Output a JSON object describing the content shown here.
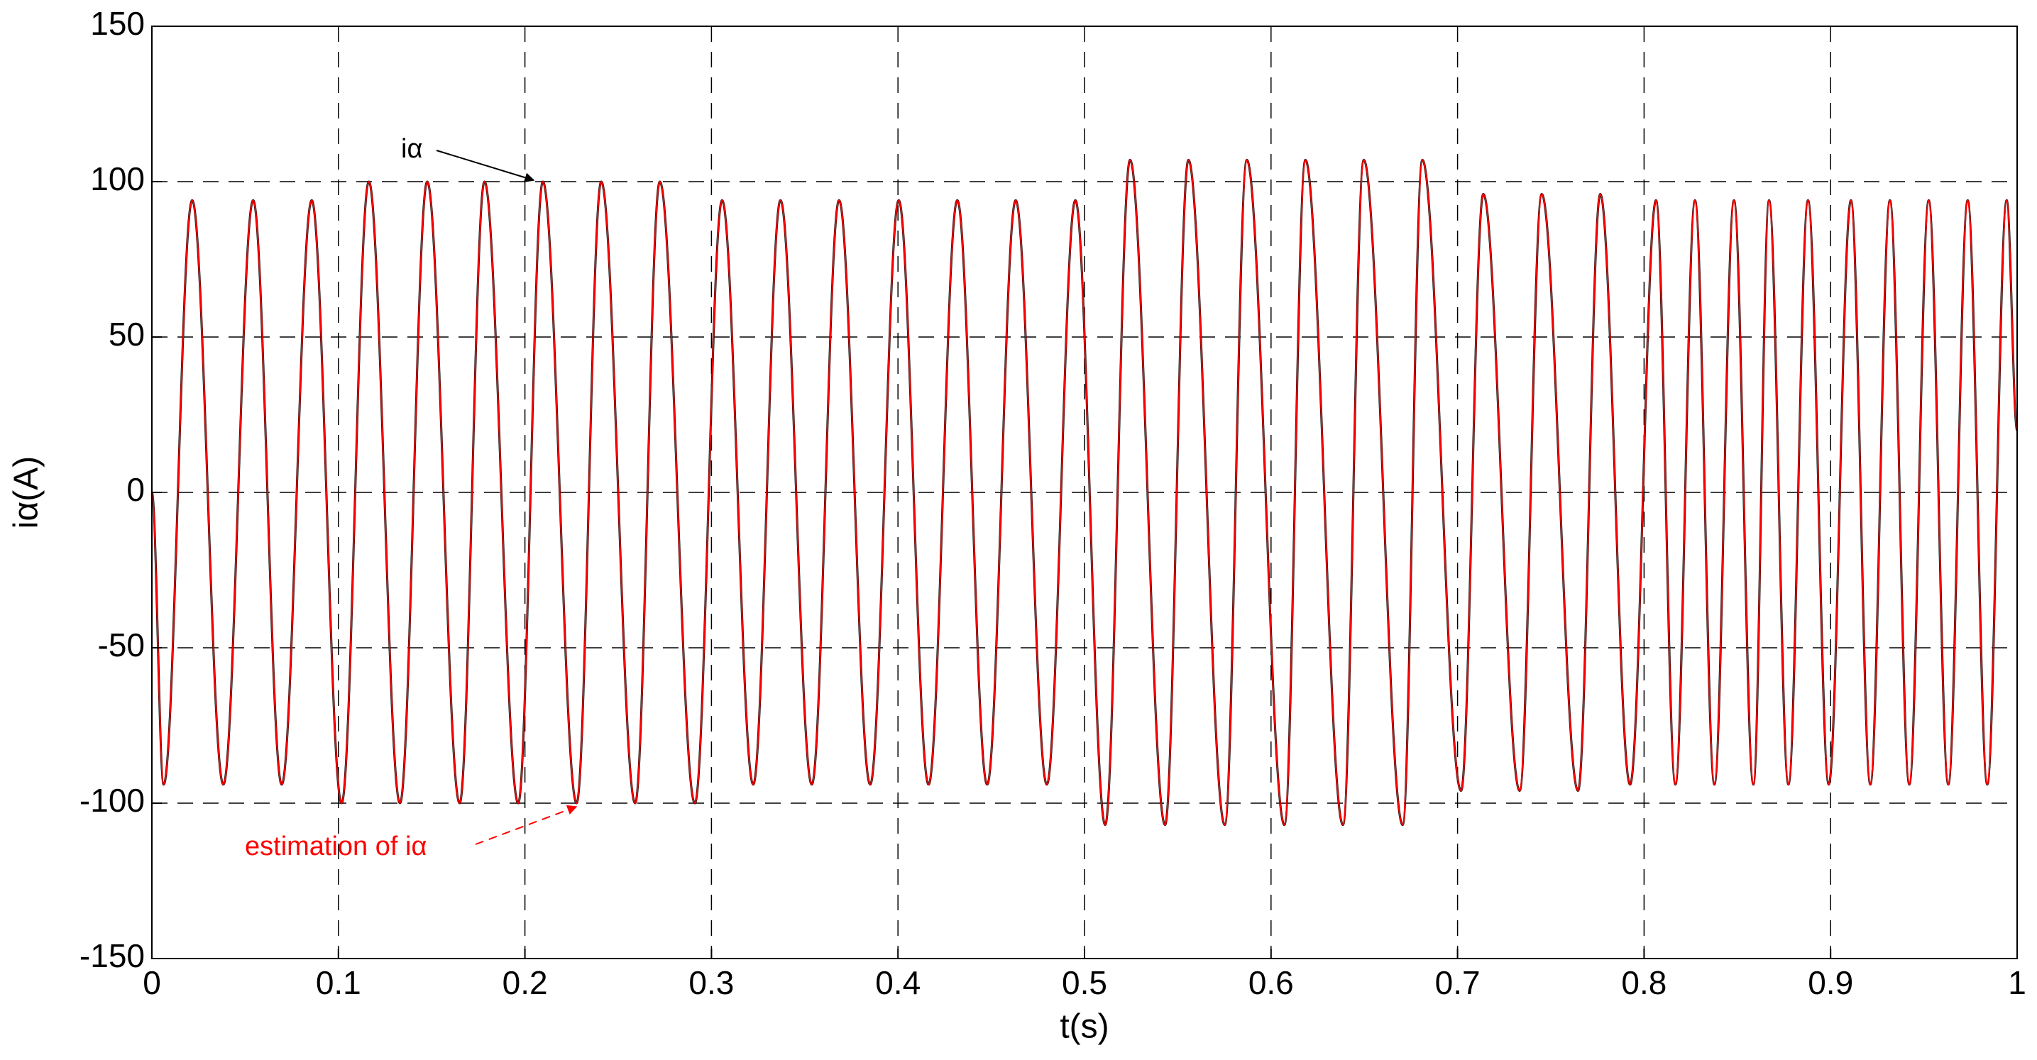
{
  "chart_data": {
    "type": "line",
    "xlabel": "t(s)",
    "ylabel": "iα(A)",
    "x": [
      0,
      0.0063,
      0.0216,
      0.0383,
      0.0543,
      0.0696,
      0.0857,
      0.1017,
      0.1163,
      0.133,
      0.1476,
      0.165,
      0.1783,
      0.1964,
      0.2096,
      0.2277,
      0.2409,
      0.2591,
      0.2723,
      0.2911,
      0.3057,
      0.3224,
      0.337,
      0.3538,
      0.3684,
      0.3851,
      0.4004,
      0.4164,
      0.4318,
      0.4478,
      0.4631,
      0.4798,
      0.4951,
      0.5111,
      0.5244,
      0.5432,
      0.5557,
      0.5752,
      0.587,
      0.6072,
      0.6184,
      0.6386,
      0.6497,
      0.6706,
      0.6811,
      0.7019,
      0.7138,
      0.7333,
      0.7451,
      0.7646,
      0.7765,
      0.7925,
      0.8064,
      0.8168,
      0.8273,
      0.8377,
      0.8482,
      0.8586,
      0.867,
      0.8774,
      0.8879,
      0.899,
      0.9109,
      0.9213,
      0.9318,
      0.9422,
      0.9526,
      0.9631,
      0.9735,
      0.984,
      0.9944,
      1
    ],
    "series": [
      {
        "name": "iα",
        "color": "#000000",
        "values": [
          0,
          -94,
          94,
          -94,
          94,
          -94,
          94,
          -100,
          100,
          -100,
          100,
          -100,
          100,
          -100,
          100,
          -100,
          100,
          -100,
          100,
          -100,
          94,
          -94,
          94,
          -94,
          94,
          -94,
          94,
          -94,
          94,
          -94,
          94,
          -94,
          94,
          -107,
          107,
          -107,
          107,
          -107,
          107,
          -107,
          107,
          -107,
          107,
          -107,
          107,
          -96,
          96,
          -96,
          96,
          -96,
          96,
          -94,
          94,
          -94,
          94,
          -94,
          94,
          -94,
          94,
          -94,
          94,
          -94,
          94,
          -94,
          94,
          -94,
          94,
          -94,
          94,
          -94,
          94,
          20
        ]
      },
      {
        "name": "estimation of iα",
        "color": "#ff0000",
        "values": [
          0,
          -94,
          94,
          -94,
          94,
          -94,
          94,
          -100,
          100,
          -100,
          100,
          -100,
          100,
          -100,
          100,
          -100,
          100,
          -100,
          100,
          -100,
          94,
          -94,
          94,
          -94,
          94,
          -94,
          94,
          -94,
          94,
          -94,
          94,
          -94,
          94,
          -107,
          107,
          -107,
          107,
          -107,
          107,
          -107,
          107,
          -107,
          107,
          -107,
          107,
          -96,
          96,
          -96,
          96,
          -96,
          96,
          -94,
          94,
          -94,
          94,
          -94,
          94,
          -94,
          94,
          -94,
          94,
          -94,
          94,
          -94,
          94,
          -94,
          94,
          -94,
          94,
          -94,
          94,
          20
        ]
      }
    ],
    "xlim": [
      0,
      1
    ],
    "xticks": [
      0,
      0.1,
      0.2,
      0.3,
      0.4,
      0.5,
      0.6,
      0.7,
      0.8,
      0.9,
      1
    ],
    "ylim": [
      -150,
      150
    ],
    "yticks": [
      -150,
      -100,
      -50,
      0,
      50,
      100,
      150
    ],
    "grid": true
  }
}
